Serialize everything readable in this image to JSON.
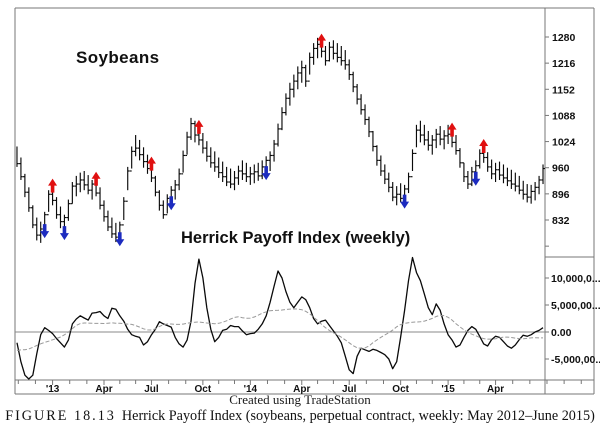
{
  "figure": {
    "price_title": "Soybeans",
    "indicator_title": "Herrick Payoff Index (weekly)",
    "credit": "Created using TradeStation",
    "caption_label": "FIGURE 18.13",
    "caption_text": "Herrick Payoff Index (soybeans, perpetual contract, weekly: May 2012–June 2015)"
  },
  "colors": {
    "bar_line": "#0a0a0a",
    "indicator_line": "#0a0a0a",
    "average_line": "#999999",
    "zero_line": "#8a8a8a",
    "frame": "#777777",
    "axis_text": "#111111",
    "sell_arrow_red": "#e01010",
    "buy_arrow_blue": "#1c2bbf"
  },
  "chart_data": {
    "type": "ohlc_with_indicator",
    "price_panel": {
      "type": "ohlc",
      "title": "Soybeans",
      "y_ticks": [
        1280,
        1216,
        1152,
        1088,
        1024,
        960,
        896,
        832
      ],
      "unlabeled_tick": 768,
      "ylim": [
        768,
        1312
      ],
      "bars_hlc": [
        [
          1012,
          962,
          970
        ],
        [
          985,
          930,
          938
        ],
        [
          945,
          888,
          900
        ],
        [
          912,
          852,
          862
        ],
        [
          868,
          812,
          820
        ],
        [
          838,
          782,
          795
        ],
        [
          828,
          776,
          810
        ],
        [
          852,
          800,
          845
        ],
        [
          905,
          852,
          895
        ],
        [
          921,
          868,
          880
        ],
        [
          888,
          835,
          845
        ],
        [
          865,
          812,
          828
        ],
        [
          845,
          795,
          838
        ],
        [
          882,
          830,
          872
        ],
        [
          925,
          872,
          915
        ],
        [
          940,
          890,
          920
        ],
        [
          948,
          900,
          930
        ],
        [
          952,
          905,
          918
        ],
        [
          942,
          895,
          905
        ],
        [
          930,
          882,
          920
        ],
        [
          938,
          890,
          898
        ],
        [
          912,
          858,
          868
        ],
        [
          880,
          828,
          840
        ],
        [
          855,
          805,
          815
        ],
        [
          838,
          788,
          798
        ],
        [
          825,
          778,
          790
        ],
        [
          828,
          780,
          820
        ],
        [
          888,
          832,
          878
        ],
        [
          962,
          905,
          952
        ],
        [
          1012,
          958,
          1000
        ],
        [
          1040,
          988,
          1008
        ],
        [
          1028,
          978,
          992
        ],
        [
          1010,
          960,
          975
        ],
        [
          992,
          945,
          958
        ],
        [
          975,
          925,
          935
        ],
        [
          940,
          890,
          900
        ],
        [
          905,
          855,
          868
        ],
        [
          880,
          835,
          845
        ],
        [
          895,
          848,
          885
        ],
        [
          915,
          868,
          905
        ],
        [
          930,
          882,
          918
        ],
        [
          958,
          905,
          945
        ],
        [
          1002,
          948,
          990
        ],
        [
          1048,
          992,
          1035
        ],
        [
          1082,
          1028,
          1068
        ],
        [
          1075,
          1022,
          1040
        ],
        [
          1065,
          1015,
          1028
        ],
        [
          1045,
          995,
          1008
        ],
        [
          1025,
          975,
          988
        ],
        [
          1010,
          960,
          972
        ],
        [
          1000,
          950,
          962
        ],
        [
          985,
          935,
          948
        ],
        [
          975,
          925,
          938
        ],
        [
          962,
          915,
          925
        ],
        [
          958,
          910,
          920
        ],
        [
          952,
          905,
          935
        ],
        [
          965,
          918,
          952
        ],
        [
          978,
          930,
          945
        ],
        [
          972,
          925,
          938
        ],
        [
          962,
          918,
          945
        ],
        [
          968,
          922,
          950
        ],
        [
          972,
          928,
          940
        ],
        [
          978,
          932,
          962
        ],
        [
          988,
          942,
          978
        ],
        [
          1000,
          952,
          990
        ],
        [
          1028,
          975,
          1018
        ],
        [
          1068,
          1012,
          1055
        ],
        [
          1108,
          1052,
          1095
        ],
        [
          1142,
          1088,
          1130
        ],
        [
          1168,
          1112,
          1152
        ],
        [
          1188,
          1132,
          1172
        ],
        [
          1208,
          1152,
          1192
        ],
        [
          1222,
          1168,
          1205
        ],
        [
          1212,
          1158,
          1172
        ],
        [
          1242,
          1188,
          1230
        ],
        [
          1265,
          1212,
          1252
        ],
        [
          1278,
          1228,
          1262
        ],
        [
          1276,
          1230,
          1245
        ],
        [
          1258,
          1210,
          1222
        ],
        [
          1268,
          1220,
          1255
        ],
        [
          1272,
          1225,
          1240
        ],
        [
          1265,
          1218,
          1230
        ],
        [
          1258,
          1210,
          1222
        ],
        [
          1248,
          1200,
          1212
        ],
        [
          1225,
          1175,
          1188
        ],
        [
          1195,
          1145,
          1158
        ],
        [
          1165,
          1115,
          1128
        ],
        [
          1140,
          1090,
          1102
        ],
        [
          1115,
          1065,
          1078
        ],
        [
          1085,
          1035,
          1048
        ],
        [
          1050,
          1000,
          1012
        ],
        [
          1015,
          965,
          978
        ],
        [
          990,
          940,
          952
        ],
        [
          968,
          920,
          932
        ],
        [
          948,
          900,
          912
        ],
        [
          925,
          878,
          888
        ],
        [
          915,
          868,
          895
        ],
        [
          922,
          875,
          885
        ],
        [
          918,
          872,
          908
        ],
        [
          948,
          898,
          938
        ],
        [
          1005,
          952,
          995
        ],
        [
          1065,
          1010,
          1052
        ],
        [
          1075,
          1022,
          1040
        ],
        [
          1065,
          1015,
          1028
        ],
        [
          1050,
          1002,
          1015
        ],
        [
          1040,
          992,
          1028
        ],
        [
          1055,
          1008,
          1042
        ],
        [
          1062,
          1015,
          1030
        ],
        [
          1052,
          1005,
          1038
        ],
        [
          1065,
          1018,
          1042
        ],
        [
          1058,
          1010,
          1022
        ],
        [
          1040,
          992,
          1002
        ],
        [
          1008,
          960,
          972
        ],
        [
          972,
          925,
          938
        ],
        [
          952,
          908,
          920
        ],
        [
          962,
          915,
          950
        ],
        [
          978,
          928,
          965
        ],
        [
          1005,
          958,
          995
        ],
        [
          1018,
          972,
          985
        ],
        [
          998,
          950,
          962
        ],
        [
          980,
          932,
          945
        ],
        [
          972,
          925,
          955
        ],
        [
          975,
          930,
          942
        ],
        [
          968,
          922,
          935
        ],
        [
          960,
          915,
          928
        ],
        [
          955,
          908,
          920
        ],
        [
          948,
          902,
          915
        ],
        [
          940,
          895,
          905
        ],
        [
          928,
          882,
          895
        ],
        [
          920,
          875,
          888
        ],
        [
          918,
          872,
          902
        ],
        [
          925,
          880,
          912
        ],
        [
          940,
          895,
          930
        ],
        [
          968,
          920,
          958
        ]
      ]
    },
    "indicator_panel": {
      "type": "line",
      "title": "Herrick Payoff Index (weekly)",
      "units": "millions",
      "y_tick_labels": [
        "10,000,0...",
        "5,000,00...",
        "0.00",
        "-5,000,00..."
      ],
      "y_tick_values_millions": [
        10,
        5,
        0,
        -5
      ],
      "has_dashed_average": true,
      "values_millions": [
        -2.0,
        -5.5,
        -8.0,
        -9.3,
        -8.0,
        -4.0,
        -0.5,
        0.8,
        0.3,
        -0.3,
        -1.2,
        -2.0,
        -2.8,
        -1.5,
        1.5,
        2.4,
        3.0,
        2.6,
        2.2,
        3.5,
        3.6,
        3.8,
        3.0,
        2.5,
        4.4,
        4.2,
        3.0,
        2.0,
        0.5,
        -0.5,
        -0.8,
        -1.0,
        -2.4,
        -1.8,
        -0.5,
        0.5,
        1.9,
        1.5,
        1.2,
        0.9,
        -1.0,
        -2.2,
        -2.8,
        -1.5,
        2.0,
        9.0,
        13.5,
        10.0,
        4.5,
        0.5,
        -1.8,
        -1.0,
        0.3,
        0.5,
        1.2,
        1.0,
        1.0,
        0.2,
        -0.5,
        -0.3,
        -0.2,
        0.5,
        1.5,
        3.0,
        5.5,
        8.5,
        11.3,
        10.0,
        7.5,
        5.5,
        4.5,
        5.5,
        6.5,
        6.0,
        4.5,
        2.5,
        1.5,
        2.0,
        2.2,
        1.2,
        0.2,
        -0.8,
        -2.0,
        -4.5,
        -7.0,
        -7.7,
        -4.5,
        -3.0,
        -3.3,
        -3.6,
        -3.2,
        -3.4,
        -3.8,
        -4.2,
        -5.0,
        -6.8,
        -5.5,
        -1.0,
        4.0,
        9.5,
        13.8,
        11.0,
        9.5,
        7.0,
        4.5,
        3.2,
        5.2,
        4.0,
        1.5,
        -0.5,
        -1.5,
        -2.8,
        -2.4,
        -1.0,
        0.3,
        1.0,
        0.5,
        -0.8,
        -2.2,
        -2.6,
        -1.4,
        -0.8,
        -1.0,
        -1.8,
        -2.6,
        -3.0,
        -2.4,
        -1.4,
        -0.6,
        -0.8,
        -0.5,
        0.0,
        0.3,
        0.8
      ]
    },
    "x_axis": {
      "labels": [
        {
          "text": "'13",
          "index": 9
        },
        {
          "text": "Apr",
          "index": 22
        },
        {
          "text": "Jul",
          "index": 34
        },
        {
          "text": "Oct",
          "index": 47
        },
        {
          "text": "'14",
          "index": 59
        },
        {
          "text": "Apr",
          "index": 72
        },
        {
          "text": "Jul",
          "index": 84
        },
        {
          "text": "Oct",
          "index": 97
        },
        {
          "text": "'15",
          "index": 109
        },
        {
          "text": "Apr",
          "index": 121
        }
      ]
    },
    "signals": {
      "sell_arrow_indices": [
        9,
        20,
        34,
        46,
        77,
        110,
        118
      ],
      "buy_arrow_indices": [
        7,
        12,
        26,
        39,
        63,
        98,
        116
      ]
    }
  }
}
